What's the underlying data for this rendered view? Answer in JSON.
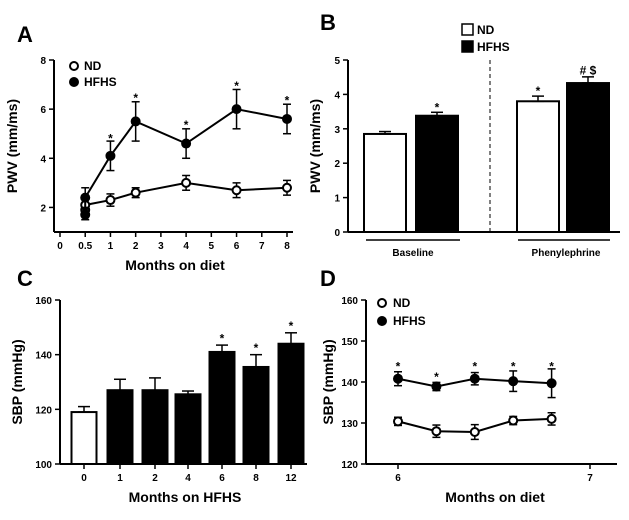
{
  "chart_data": [
    {
      "panel": "A",
      "type": "line",
      "xlabel": "Months on diet",
      "ylabel": "PWV (mm/ms)",
      "x_ticks": [
        "0",
        "0.5",
        "1",
        "2",
        "3",
        "4",
        "5",
        "6",
        "7",
        "8"
      ],
      "y_ticks": [
        "2",
        "4",
        "6",
        "8"
      ],
      "ylim": [
        1,
        8
      ],
      "legend_position": "top-left",
      "series": [
        {
          "name": "ND",
          "marker": "open",
          "x": [
            0,
            0.5,
            1,
            2,
            4,
            6,
            8
          ],
          "y": [
            1.9,
            2.1,
            2.3,
            2.6,
            3.0,
            2.7,
            2.8
          ],
          "err": [
            0.2,
            0.35,
            0.25,
            0.2,
            0.3,
            0.3,
            0.3
          ]
        },
        {
          "name": "HFHS",
          "marker": "filled",
          "x": [
            0,
            0.5,
            1,
            2,
            4,
            6,
            8
          ],
          "y": [
            1.7,
            2.4,
            4.1,
            5.5,
            4.6,
            6.0,
            5.6
          ],
          "err": [
            0.2,
            0.4,
            0.6,
            0.8,
            0.6,
            0.8,
            0.6
          ]
        }
      ],
      "annotations": [
        {
          "text": "*",
          "x": 1,
          "y": 4.8
        },
        {
          "text": "*",
          "x": 2,
          "y": 6.45
        },
        {
          "text": "*",
          "x": 4,
          "y": 5.35
        },
        {
          "text": "*",
          "x": 6,
          "y": 6.95
        },
        {
          "text": "*",
          "x": 8,
          "y": 6.35
        }
      ]
    },
    {
      "panel": "B",
      "type": "bar",
      "ylabel": "PWV (mm/ms)",
      "y_ticks": [
        "0",
        "1",
        "2",
        "3",
        "4",
        "5"
      ],
      "ylim": [
        0,
        5
      ],
      "groups": [
        "Baseline",
        "Phenylephrine"
      ],
      "legend_position": "top-center",
      "series": [
        {
          "name": "ND",
          "fill": "#ffffff",
          "values": [
            2.85,
            3.8
          ],
          "err": [
            0.07,
            0.15
          ]
        },
        {
          "name": "HFHS",
          "fill": "#000000",
          "values": [
            3.38,
            4.33
          ],
          "err": [
            0.1,
            0.18
          ]
        }
      ],
      "annotations": [
        {
          "text": "*",
          "group": 0,
          "series": 1,
          "y": 3.62
        },
        {
          "text": "*",
          "group": 1,
          "series": 0,
          "y": 4.1
        },
        {
          "text": "# $",
          "group": 1,
          "series": 1,
          "y": 4.7
        }
      ]
    },
    {
      "panel": "C",
      "type": "bar",
      "xlabel": "Months on HFHS",
      "ylabel": "SBP (mmHg)",
      "categories": [
        "0",
        "1",
        "2",
        "4",
        "6",
        "8",
        "12"
      ],
      "y_ticks": [
        "100",
        "120",
        "140",
        "160"
      ],
      "ylim": [
        100,
        160
      ],
      "values": [
        119,
        127,
        127,
        125.5,
        141,
        135.5,
        144
      ],
      "err": [
        2,
        4,
        4.5,
        1.2,
        2.5,
        4.5,
        4
      ],
      "fills": [
        "#ffffff",
        "#000000",
        "#000000",
        "#000000",
        "#000000",
        "#000000",
        "#000000"
      ],
      "annotations": [
        {
          "text": "*",
          "index": 4,
          "y": 146
        },
        {
          "text": "*",
          "index": 5,
          "y": 142.5
        },
        {
          "text": "*",
          "index": 6,
          "y": 150.5
        }
      ]
    },
    {
      "panel": "D",
      "type": "line",
      "xlabel": "Months on diet",
      "ylabel": "SBP (mmHg)",
      "x_ticks": [
        "6",
        "7"
      ],
      "y_ticks": [
        "120",
        "130",
        "140",
        "150",
        "160"
      ],
      "ylim": [
        120,
        160
      ],
      "legend_position": "top-left",
      "series": [
        {
          "name": "ND",
          "marker": "open",
          "x": [
            6,
            6.2,
            6.4,
            6.6,
            6.8
          ],
          "y": [
            130.4,
            128,
            127.8,
            130.6,
            131
          ],
          "err": [
            1,
            1.5,
            1.8,
            1,
            1.5
          ]
        },
        {
          "name": "HFHS",
          "marker": "filled",
          "x": [
            6,
            6.2,
            6.4,
            6.6,
            6.8
          ],
          "y": [
            140.8,
            138.9,
            140.8,
            140.2,
            139.7
          ],
          "err": [
            1.7,
            1,
            1.5,
            2.5,
            3.5
          ]
        }
      ],
      "annotations": [
        {
          "text": "*",
          "x": 6,
          "y": 143.8
        },
        {
          "text": "*",
          "x": 6.2,
          "y": 141.2
        },
        {
          "text": "*",
          "x": 6.4,
          "y": 143.8
        },
        {
          "text": "*",
          "x": 6.6,
          "y": 143.8
        },
        {
          "text": "*",
          "x": 6.8,
          "y": 143.8
        }
      ]
    }
  ]
}
